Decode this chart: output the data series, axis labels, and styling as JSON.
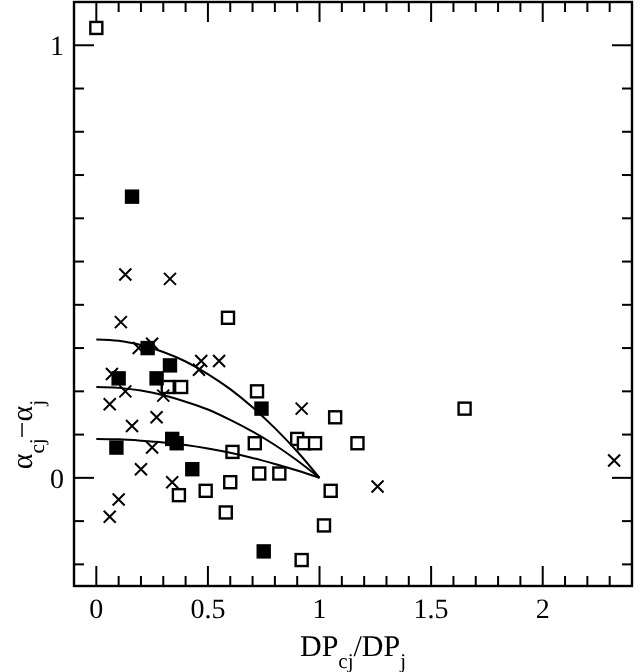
{
  "chart_data": {
    "type": "scatter",
    "xlabel": "DP$_{cj}$/DP$_{j}$",
    "ylabel": "α$_{cj}$−α$_{j}$",
    "xlim": [
      -0.1,
      2.4
    ],
    "ylim": [
      -0.25,
      1.1
    ],
    "xticks": [
      {
        "value": -0.1,
        "label": null
      },
      0,
      {
        "value": 0.1,
        "label": null
      },
      {
        "value": 0.2,
        "label": null
      },
      {
        "value": 0.3,
        "label": null
      },
      {
        "value": 0.4,
        "label": null
      },
      0.5,
      {
        "value": 0.6,
        "label": null
      },
      {
        "value": 0.7,
        "label": null
      },
      {
        "value": 0.8,
        "label": null
      },
      {
        "value": 0.9,
        "label": null
      },
      1,
      {
        "value": 1.1,
        "label": null
      },
      {
        "value": 1.2,
        "label": null
      },
      {
        "value": 1.3,
        "label": null
      },
      {
        "value": 1.4,
        "label": null
      },
      1.5,
      {
        "value": 1.6,
        "label": null
      },
      {
        "value": 1.7,
        "label": null
      },
      {
        "value": 1.8,
        "label": null
      },
      {
        "value": 1.9,
        "label": null
      },
      2,
      {
        "value": 2.1,
        "label": null
      },
      {
        "value": 2.2,
        "label": null
      },
      {
        "value": 2.3,
        "label": null
      }
    ],
    "yticks": [
      {
        "value": -0.2,
        "label": null
      },
      {
        "value": -0.1,
        "label": null
      },
      0,
      {
        "value": 0.1,
        "label": null
      },
      {
        "value": 0.2,
        "label": null
      },
      {
        "value": 0.3,
        "label": null
      },
      {
        "value": 0.4,
        "label": null
      },
      {
        "value": 0.5,
        "label": null
      },
      {
        "value": 0.6,
        "label": null
      },
      {
        "value": 0.7,
        "label": null
      },
      {
        "value": 0.8,
        "label": null
      },
      {
        "value": 0.9,
        "label": null
      },
      1
    ],
    "grid": false,
    "series": [
      {
        "marker": "square",
        "color": "#ffffff",
        "x": [
          0,
          0.59,
          0.32,
          0.38,
          0.72,
          1.07,
          0.71,
          0.9,
          0.93,
          0.98,
          1.17,
          0.61,
          0.73,
          0.82,
          0.6,
          0.49,
          0.37,
          1.05,
          0.58,
          1.02,
          0.92,
          1.65
        ],
        "values": [
          1.04,
          0.37,
          0.21,
          0.21,
          0.2,
          0.14,
          0.08,
          0.09,
          0.08,
          0.08,
          0.08,
          0.06,
          0.01,
          0.01,
          -0.01,
          -0.03,
          -0.04,
          -0.03,
          -0.08,
          -0.11,
          -0.19,
          0.16
        ]
      },
      {
        "marker": "square",
        "color": "#000000",
        "x": [
          0.16,
          0.23,
          0.33,
          0.1,
          0.27,
          0.74,
          0.09,
          0.34,
          0.36,
          0.43,
          0.75
        ],
        "values": [
          0.65,
          0.3,
          0.26,
          0.23,
          0.23,
          0.16,
          0.07,
          0.09,
          0.08,
          0.02,
          -0.17
        ]
      },
      {
        "marker": "cross",
        "color": "#000000",
        "x": [
          0.13,
          0.33,
          0.11,
          0.25,
          0.19,
          0.47,
          0.46,
          0.55,
          0.07,
          0.13,
          0.06,
          0.3,
          0.16,
          0.27,
          0.25,
          0.2,
          0.34,
          0.1,
          0.06,
          0.92,
          1.26,
          2.32
        ],
        "values": [
          0.47,
          0.46,
          0.36,
          0.31,
          0.3,
          0.27,
          0.25,
          0.27,
          0.24,
          0.2,
          0.17,
          0.19,
          0.12,
          0.14,
          0.07,
          0.02,
          -0.01,
          -0.05,
          -0.09,
          0.16,
          -0.02,
          0.04
        ]
      },
      {
        "type": "line",
        "marker": "none",
        "color": "#000000",
        "x": [
          0,
          0.1,
          0.2,
          0.3,
          0.4,
          0.5,
          0.6,
          0.7,
          0.8,
          0.9,
          1
        ],
        "values": [
          0.32,
          0.317,
          0.307,
          0.291,
          0.269,
          0.24,
          0.205,
          0.163,
          0.115,
          0.061,
          0
        ]
      },
      {
        "type": "line",
        "marker": "none",
        "color": "#000000",
        "x": [
          0,
          0.1,
          0.2,
          0.3,
          0.4,
          0.5,
          0.6,
          0.7,
          0.8,
          0.9,
          1
        ],
        "values": [
          0.21,
          0.208,
          0.202,
          0.191,
          0.176,
          0.158,
          0.134,
          0.107,
          0.076,
          0.04,
          0
        ]
      },
      {
        "type": "line",
        "marker": "none",
        "color": "#000000",
        "x": [
          0,
          0.1,
          0.2,
          0.3,
          0.4,
          0.5,
          0.6,
          0.7,
          0.8,
          0.9,
          1
        ],
        "values": [
          0.09,
          0.089,
          0.086,
          0.082,
          0.076,
          0.068,
          0.058,
          0.046,
          0.032,
          0.017,
          0
        ]
      }
    ]
  }
}
